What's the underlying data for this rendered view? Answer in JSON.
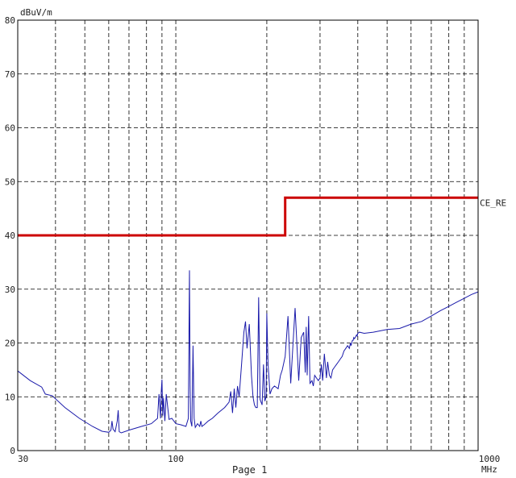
{
  "chart_data": {
    "type": "line",
    "title": "",
    "ylabel": "dBuV/m",
    "xlabel": "MHz",
    "footer": "Page 1",
    "x_scale": "log",
    "xlim": [
      30,
      1000
    ],
    "ylim": [
      0,
      80
    ],
    "y_ticks": [
      0,
      10,
      20,
      30,
      40,
      50,
      60,
      70,
      80
    ],
    "x_tick_labels": [
      {
        "value": 30,
        "label": "30"
      },
      {
        "value": 100,
        "label": "100"
      },
      {
        "value": 1000,
        "label": "1000"
      }
    ],
    "grid": true,
    "colors": {
      "limit": "#cc0000",
      "emission": "#1a1aaa",
      "grid": "#000000"
    },
    "series": [
      {
        "name": "CE_RE",
        "role": "limit",
        "x": [
          30,
          230,
          230,
          1000
        ],
        "y": [
          40,
          40,
          47,
          47
        ]
      },
      {
        "role": "emission",
        "x": [
          30,
          33,
          36,
          37,
          39,
          43,
          48,
          53,
          57,
          60,
          61,
          61.5,
          62,
          63,
          64,
          64.5,
          65,
          66,
          70,
          77,
          83,
          87,
          88,
          89,
          89.5,
          90,
          90.5,
          91,
          92,
          93,
          95,
          97,
          100,
          104,
          108,
          110,
          111,
          111.5,
          112,
          113,
          114,
          115,
          116,
          118,
          120,
          121,
          122,
          124,
          128,
          132,
          138,
          145,
          150,
          152,
          154,
          156,
          158,
          160,
          162,
          165,
          168,
          170,
          172,
          175,
          178,
          180,
          182,
          184,
          186,
          188,
          190,
          193,
          195,
          197,
          199,
          200,
          202,
          205,
          208,
          212,
          218,
          222,
          225,
          230,
          235,
          240,
          248,
          255,
          260,
          265,
          268,
          270,
          272,
          275,
          278,
          282,
          285,
          288,
          292,
          296,
          300,
          303,
          306,
          310,
          315,
          318,
          322,
          326,
          330,
          335,
          340,
          345,
          350,
          355,
          360,
          365,
          370,
          375,
          378,
          380,
          382,
          384,
          386,
          388,
          390,
          392,
          394,
          396,
          398,
          400,
          405,
          420,
          450,
          500,
          550,
          600,
          650,
          700,
          750,
          800,
          850,
          900,
          950,
          1000
        ],
        "y": [
          14.8,
          13,
          11.8,
          10.5,
          10.2,
          8,
          6,
          4.5,
          3.6,
          3.4,
          3.8,
          5.5,
          4,
          3.5,
          5.5,
          7.5,
          3.5,
          3.3,
          3.8,
          4.5,
          5,
          6,
          10.5,
          6,
          11,
          13.2,
          6.5,
          9.8,
          5.5,
          10.5,
          5.8,
          6,
          5,
          4.8,
          4.5,
          6,
          33.5,
          12,
          5.5,
          4.5,
          19.5,
          6,
          4.3,
          5,
          4.5,
          5.5,
          4.5,
          4.8,
          5.5,
          6,
          7,
          8,
          9,
          11,
          7,
          11.5,
          8,
          12,
          10,
          16,
          22,
          24,
          19,
          23.5,
          14,
          10,
          8.5,
          8,
          8,
          28.5,
          9.5,
          8.5,
          16,
          9.2,
          10,
          25.5,
          16,
          10.5,
          11.5,
          12,
          11.5,
          14,
          15,
          17.5,
          25,
          12.5,
          26.5,
          13,
          21,
          22,
          14.5,
          23,
          14,
          25,
          12.5,
          13,
          12,
          14,
          13.5,
          13,
          13.5,
          16,
          13,
          18,
          13.5,
          16.5,
          14,
          13.5,
          15,
          15.5,
          16,
          16.5,
          17,
          17.5,
          18.5,
          19,
          19.5,
          19,
          20,
          19.5,
          20,
          20.5,
          20.5,
          21,
          20.8,
          21,
          21.2,
          21.5,
          21.3,
          21.8,
          22,
          21.8,
          22,
          22.5,
          22.7,
          23.5,
          24,
          25,
          26,
          26.8,
          27.6,
          28.3,
          29,
          29.5
        ]
      }
    ]
  }
}
